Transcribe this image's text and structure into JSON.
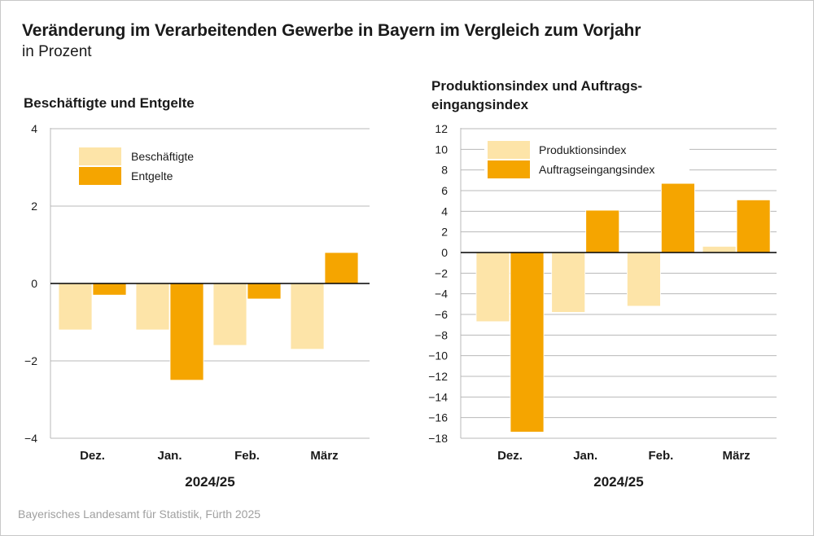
{
  "title": "Veränderung im Verarbeitenden Gewerbe in Bayern im Vergleich zum Vorjahr",
  "subtitle": "in Prozent",
  "source": "Bayerisches Landesamt für Statistik, Fürth 2025",
  "colors": {
    "light": "#fde4a8",
    "dark": "#f5a500",
    "grid": "#b8b8b8",
    "axis": "#000000"
  },
  "chart_data": [
    {
      "type": "bar",
      "title": "Beschäftigte und Entgelte",
      "xlabel": "2024/25",
      "ylabel": "",
      "categories": [
        "Dez.",
        "Jan.",
        "Feb.",
        "März"
      ],
      "series": [
        {
          "name": "Beschäftigte",
          "values": [
            -1.2,
            -1.2,
            -1.6,
            -1.7
          ]
        },
        {
          "name": "Entgelte",
          "values": [
            -0.3,
            -2.5,
            -0.4,
            0.8
          ]
        }
      ],
      "ylim": [
        -4,
        4
      ],
      "yticks": [
        4,
        2,
        0,
        -2,
        -4
      ],
      "ytick_labels": [
        "4",
        "2",
        "0",
        "−2",
        "−4"
      ],
      "grid": true,
      "legend": "top-left"
    },
    {
      "type": "bar",
      "title": "Produktionsindex und Auftrags-eingangsindex",
      "title_lines": [
        "Produktionsindex und Auftrags-",
        "eingangsindex"
      ],
      "xlabel": "2024/25",
      "ylabel": "",
      "categories": [
        "Dez.",
        "Jan.",
        "Feb.",
        "März"
      ],
      "series": [
        {
          "name": "Produktionsindex",
          "values": [
            -6.7,
            -5.8,
            -5.2,
            0.6
          ]
        },
        {
          "name": "Auftragseingangsindex",
          "values": [
            -17.4,
            4.1,
            6.7,
            5.1
          ]
        }
      ],
      "ylim": [
        -18,
        12
      ],
      "yticks": [
        12,
        10,
        8,
        6,
        4,
        2,
        0,
        -2,
        -4,
        -6,
        -8,
        -10,
        -12,
        -14,
        -16,
        -18
      ],
      "ytick_labels": [
        "12",
        "10",
        "8",
        "6",
        "4",
        "2",
        "0",
        "−2",
        "−4",
        "−6",
        "−8",
        "−10",
        "−12",
        "−14",
        "−16",
        "−18"
      ],
      "grid": true,
      "legend": "top-left"
    }
  ]
}
